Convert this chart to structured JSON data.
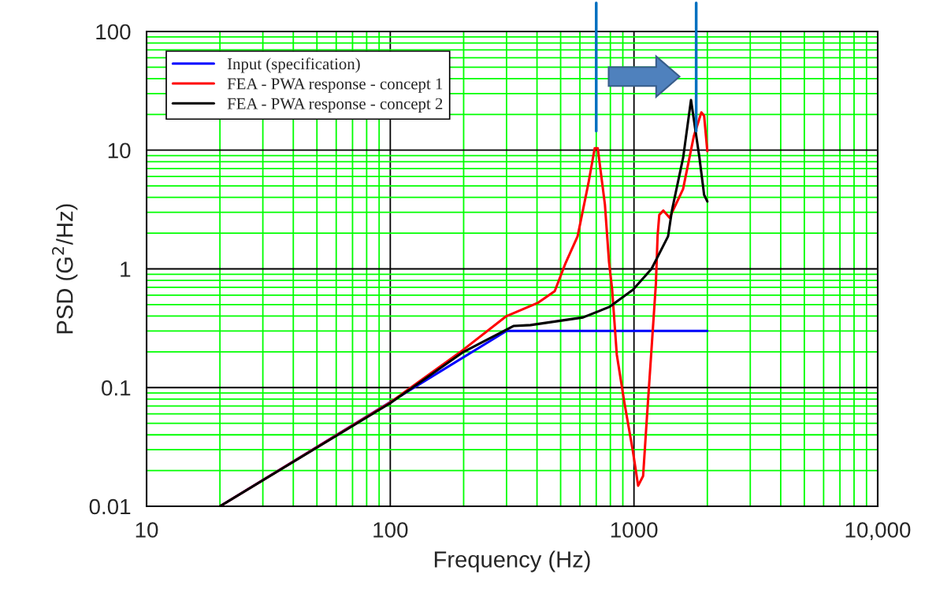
{
  "chart_data": {
    "type": "line",
    "xlabel": "Frequency (Hz)",
    "ylabel": "PSD (G$^{2}$/Hz)",
    "log": "xy",
    "xlim": [
      10,
      10000
    ],
    "ylim": [
      0.01,
      100
    ],
    "xticks": [
      10,
      {
        "value": 20,
        "label": null
      },
      {
        "value": 30,
        "label": null
      },
      {
        "value": 40,
        "label": null
      },
      {
        "value": 50,
        "label": null
      },
      {
        "value": 60,
        "label": null
      },
      {
        "value": 70,
        "label": null
      },
      {
        "value": 80,
        "label": null
      },
      {
        "value": 90,
        "label": null
      },
      100,
      {
        "value": 200,
        "label": null
      },
      {
        "value": 300,
        "label": null
      },
      {
        "value": 400,
        "label": null
      },
      {
        "value": 500,
        "label": null
      },
      {
        "value": 600,
        "label": null
      },
      {
        "value": 700,
        "label": null
      },
      {
        "value": 800,
        "label": null
      },
      {
        "value": 900,
        "label": null
      },
      1000,
      {
        "value": 2000,
        "label": null
      },
      {
        "value": 3000,
        "label": null
      },
      {
        "value": 4000,
        "label": null
      },
      {
        "value": 5000,
        "label": null
      },
      {
        "value": 6000,
        "label": null
      },
      {
        "value": 7000,
        "label": null
      },
      {
        "value": 8000,
        "label": null
      },
      {
        "value": 9000,
        "label": null
      },
      {
        "value": 10000,
        "label": "10,000"
      }
    ],
    "yticks": [
      0.01,
      {
        "value": 0.02,
        "label": null
      },
      {
        "value": 0.03,
        "label": null
      },
      {
        "value": 0.04,
        "label": null
      },
      {
        "value": 0.05,
        "label": null
      },
      {
        "value": 0.06,
        "label": null
      },
      {
        "value": 0.07,
        "label": null
      },
      {
        "value": 0.08,
        "label": null
      },
      {
        "value": 0.09,
        "label": null
      },
      0.1,
      {
        "value": 0.2,
        "label": null
      },
      {
        "value": 0.3,
        "label": null
      },
      {
        "value": 0.4,
        "label": null
      },
      {
        "value": 0.5,
        "label": null
      },
      {
        "value": 0.6,
        "label": null
      },
      {
        "value": 0.7,
        "label": null
      },
      {
        "value": 0.8,
        "label": null
      },
      {
        "value": 0.9,
        "label": null
      },
      1,
      {
        "value": 2,
        "label": null
      },
      {
        "value": 3,
        "label": null
      },
      {
        "value": 4,
        "label": null
      },
      {
        "value": 5,
        "label": null
      },
      {
        "value": 6,
        "label": null
      },
      {
        "value": 7,
        "label": null
      },
      {
        "value": 8,
        "label": null
      },
      {
        "value": 9,
        "label": null
      },
      10,
      {
        "value": 20,
        "label": null
      },
      {
        "value": 30,
        "label": null
      },
      {
        "value": 40,
        "label": null
      },
      {
        "value": 50,
        "label": null
      },
      {
        "value": 60,
        "label": null
      },
      {
        "value": 70,
        "label": null
      },
      {
        "value": 80,
        "label": null
      },
      {
        "value": 90,
        "label": null
      },
      100
    ],
    "grid": true,
    "legend": "top left",
    "line_style": "solid",
    "marker": "none",
    "series": [
      {
        "name": "Input (specification)",
        "color": "#0000ff",
        "x": [
          20,
          300,
          2000
        ],
        "values": [
          0.01,
          0.3,
          0.3
        ]
      },
      {
        "name": "FEA - PWA response - concept 1",
        "color": "#ff0000",
        "x": [
          20,
          100,
          198,
          298,
          405,
          473,
          524,
          587,
          650,
          690,
          710,
          760,
          790,
          813,
          850,
          915,
          990,
          1040,
          1090,
          1130,
          1180,
          1230,
          1250,
          1270,
          1320,
          1400,
          1590,
          1760,
          1890,
          1940,
          2000
        ],
        "values": [
          0.01,
          0.075,
          0.206,
          0.397,
          0.52,
          0.65,
          1.12,
          1.88,
          5.25,
          10.4,
          10.4,
          3.47,
          1.14,
          0.68,
          0.19,
          0.073,
          0.029,
          0.0149,
          0.018,
          0.056,
          0.21,
          0.75,
          1.9,
          2.85,
          3.1,
          2.7,
          4.7,
          13.1,
          20.8,
          19.5,
          9.8
        ]
      },
      {
        "name": "FEA - PWA response - concept 2",
        "color": "#000000",
        "x": [
          20,
          100,
          200,
          320,
          376,
          618,
          791,
          990,
          1180,
          1380,
          1432,
          1592,
          1714,
          1855,
          1940,
          2000
        ],
        "values": [
          0.01,
          0.074,
          0.2,
          0.33,
          0.336,
          0.39,
          0.477,
          0.667,
          1.0,
          1.88,
          3.12,
          8.7,
          26.5,
          8.7,
          4.2,
          3.7
        ]
      }
    ],
    "ref_lines": [
      {
        "axis": "x",
        "value": 700,
        "color": "#0070c0"
      },
      {
        "axis": "x",
        "value": 1800,
        "color": "#0070c0"
      }
    ]
  }
}
